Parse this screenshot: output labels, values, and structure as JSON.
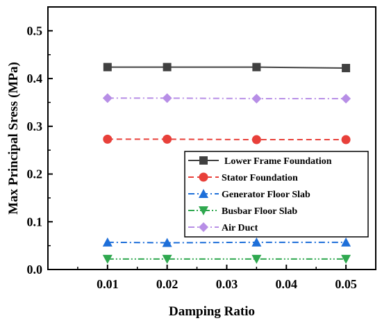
{
  "chart_data": {
    "type": "line",
    "title": "",
    "xlabel": "Damping Ratio",
    "ylabel": "Max Principal Sress (MPa)",
    "xlim": [
      0.0,
      0.055
    ],
    "ylim": [
      0.0,
      0.55
    ],
    "xticks": [
      0.01,
      0.02,
      0.03,
      0.04,
      0.05
    ],
    "yticks": [
      0.0,
      0.1,
      0.2,
      0.3,
      0.4,
      0.5
    ],
    "xtick_labels": [
      "0.01",
      "0.02",
      "0.03",
      "0.04",
      "0.05"
    ],
    "ytick_labels": [
      "0.0",
      "0.1",
      "0.2",
      "0.3",
      "0.4",
      "0.5"
    ],
    "x": [
      0.01,
      0.02,
      0.035,
      0.05
    ],
    "grid": false,
    "legend_position": "center-right",
    "series": [
      {
        "name": "Lower Frame Foundation",
        "values": [
          0.424,
          0.424,
          0.424,
          0.422
        ],
        "color": "#404040",
        "marker": "square",
        "dash": "solid"
      },
      {
        "name": "Stator Foundation",
        "values": [
          0.273,
          0.273,
          0.272,
          0.272
        ],
        "color": "#e8403a",
        "marker": "circle",
        "dash": "dash"
      },
      {
        "name": "Generator Floor Slab",
        "values": [
          0.057,
          0.056,
          0.057,
          0.057
        ],
        "color": "#1e6fd9",
        "marker": "triangle-up",
        "dash": "dashdot"
      },
      {
        "name": "Busbar Floor Slab",
        "values": [
          0.022,
          0.022,
          0.022,
          0.022
        ],
        "color": "#2fa84f",
        "marker": "triangle-down",
        "dash": "dashdotdot"
      },
      {
        "name": "Air Duct",
        "values": [
          0.359,
          0.359,
          0.358,
          0.358
        ],
        "color": "#b78ee6",
        "marker": "diamond",
        "dash": "dashdot"
      }
    ]
  }
}
